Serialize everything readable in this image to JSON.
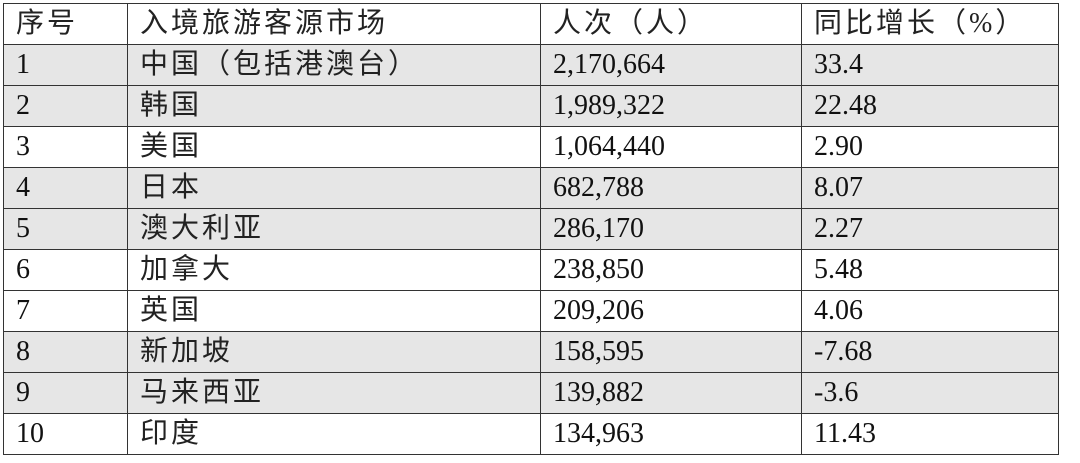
{
  "table": {
    "headers": [
      "序号",
      "入境旅游客源市场",
      "人次（人）",
      "同比增长（%）"
    ],
    "rows": [
      {
        "rank": "1",
        "market": "中国（包括港澳台）",
        "visitors": "2,170,664",
        "growth": "33.4",
        "shaded": true
      },
      {
        "rank": "2",
        "market": "韩国",
        "visitors": "1,989,322",
        "growth": "22.48",
        "shaded": true
      },
      {
        "rank": "3",
        "market": "美国",
        "visitors": "1,064,440",
        "growth": "2.90",
        "shaded": false
      },
      {
        "rank": "4",
        "market": "日本",
        "visitors": "682,788",
        "growth": "8.07",
        "shaded": true
      },
      {
        "rank": "5",
        "market": "澳大利亚",
        "visitors": "286,170",
        "growth": "2.27",
        "shaded": true
      },
      {
        "rank": "6",
        "market": "加拿大",
        "visitors": "238,850",
        "growth": "5.48",
        "shaded": false
      },
      {
        "rank": "7",
        "market": "英国",
        "visitors": "209,206",
        "growth": "4.06",
        "shaded": false
      },
      {
        "rank": "8",
        "market": "新加坡",
        "visitors": "158,595",
        "growth": "-7.68",
        "shaded": true
      },
      {
        "rank": "9",
        "market": "马来西亚",
        "visitors": "139,882",
        "growth": "-3.6",
        "shaded": true
      },
      {
        "rank": "10",
        "market": "印度",
        "visitors": "134,963",
        "growth": "11.43",
        "shaded": false
      }
    ]
  },
  "colors": {
    "shaded_row": "#e6e6e6",
    "border": "#333333"
  }
}
